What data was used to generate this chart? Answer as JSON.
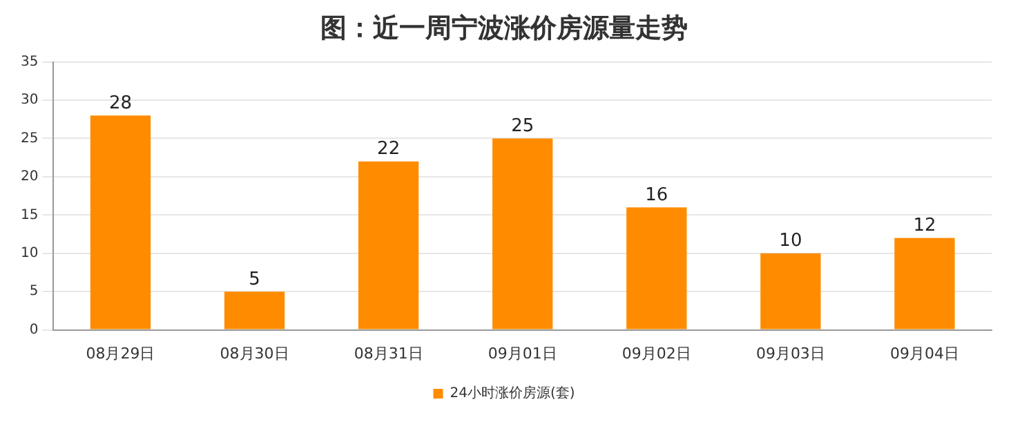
{
  "chart_data": {
    "type": "bar",
    "title": "图：近一周宁波涨价房源量走势",
    "categories": [
      "08月29日",
      "08月30日",
      "08月31日",
      "09月01日",
      "09月02日",
      "09月03日",
      "09月04日"
    ],
    "series": [
      {
        "name": "24小时涨价房源(套)",
        "color": "#ff8c00",
        "values": [
          28,
          5,
          22,
          25,
          16,
          10,
          12
        ]
      }
    ],
    "ylim": [
      0,
      35
    ],
    "yticks": [
      0,
      5,
      10,
      15,
      20,
      25,
      30,
      35
    ],
    "grid": "y",
    "legend": "bottom",
    "data_labels": true
  }
}
